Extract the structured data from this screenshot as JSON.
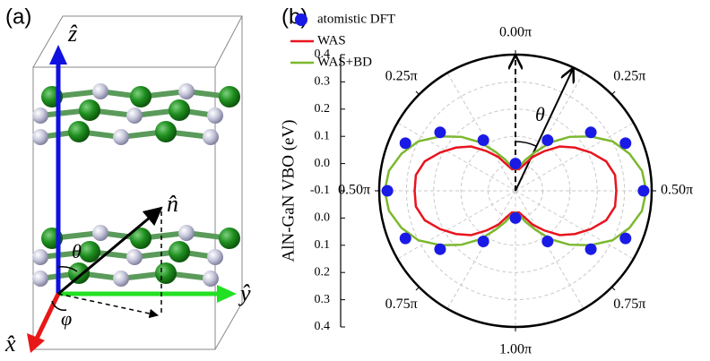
{
  "diagram": {
    "panel_label": "(a)",
    "axis_z": "ẑ",
    "axis_y": "ŷ",
    "axis_x": "x̂",
    "normal": "n̂",
    "theta": "θ",
    "phi": "φ"
  },
  "chart_data": {
    "type": "polar",
    "panel_label": "(b)",
    "radial_label": "AlN-GaN VBO (eV)",
    "annotation": "θ",
    "rlim": [
      -0.1,
      0.4
    ],
    "rticks": [
      -0.1,
      {
        "value": 0,
        "label": "0.0"
      },
      0.1,
      0.2,
      0.3,
      0.4
    ],
    "thetaticks": [
      {
        "value": 0,
        "label": "0.00π"
      },
      {
        "value": 0.25,
        "label": "0.25π"
      },
      {
        "value": 0.5,
        "label": "0.50π"
      },
      {
        "value": 0.75,
        "label": "0.75π"
      },
      {
        "value": 1,
        "label": "1.00π"
      },
      {
        "value": 1.25,
        "label": "0.75π"
      },
      {
        "value": 1.5,
        "label": "0.50π"
      },
      {
        "value": 1.75,
        "label": "0.25π"
      }
    ],
    "grid": true,
    "legend": "top-left",
    "series": [
      {
        "name": "atomistic DFT",
        "color": "#1a1ae6",
        "style": "markers",
        "theta": [
          0,
          0.18,
          0.29,
          0.37,
          0.5,
          0.63,
          0.71,
          0.82,
          1,
          1.18,
          1.29,
          1.37,
          1.5,
          1.63,
          1.71,
          1.82
        ],
        "values": [
          0.0,
          0.12,
          0.25,
          0.34,
          0.37,
          0.34,
          0.25,
          0.12,
          0.0,
          0.12,
          0.25,
          0.34,
          0.37,
          0.34,
          0.25,
          0.12
        ]
      },
      {
        "name": "WAS",
        "color": "#e8141e",
        "style": "line",
        "theta": [
          0,
          0.05,
          0.1,
          0.15,
          0.2,
          0.25,
          0.3,
          0.35,
          0.4,
          0.45,
          0.5,
          0.55,
          0.6,
          0.65,
          0.7,
          0.75,
          0.8,
          0.85,
          0.9,
          0.95,
          1,
          1.05,
          1.1,
          1.15,
          1.2,
          1.25,
          1.3,
          1.35,
          1.4,
          1.45,
          1.5,
          1.55,
          1.6,
          1.65,
          1.7,
          1.75,
          1.8,
          1.85,
          1.9,
          1.95,
          2
        ],
        "values": [
          -0.02,
          -0.02,
          0.0,
          0.04,
          0.08,
          0.13,
          0.17,
          0.21,
          0.25,
          0.27,
          0.27,
          0.27,
          0.25,
          0.21,
          0.17,
          0.13,
          0.08,
          0.04,
          0.0,
          -0.02,
          -0.02,
          -0.02,
          0.0,
          0.04,
          0.08,
          0.13,
          0.17,
          0.21,
          0.25,
          0.27,
          0.27,
          0.27,
          0.25,
          0.21,
          0.17,
          0.13,
          0.08,
          0.04,
          0.0,
          -0.02,
          -0.02
        ]
      },
      {
        "name": "WAS+BD",
        "color": "#7cb82e",
        "style": "line",
        "theta": [
          0,
          0.05,
          0.1,
          0.15,
          0.2,
          0.25,
          0.3,
          0.35,
          0.4,
          0.45,
          0.5,
          0.55,
          0.6,
          0.65,
          0.7,
          0.75,
          0.8,
          0.85,
          0.9,
          0.95,
          1,
          1.05,
          1.1,
          1.15,
          1.2,
          1.25,
          1.3,
          1.35,
          1.4,
          1.45,
          1.5,
          1.55,
          1.6,
          1.65,
          1.7,
          1.75,
          1.8,
          1.85,
          1.9,
          1.95,
          2
        ],
        "values": [
          -0.02,
          -0.01,
          0.02,
          0.06,
          0.12,
          0.18,
          0.24,
          0.3,
          0.34,
          0.37,
          0.38,
          0.37,
          0.34,
          0.3,
          0.24,
          0.18,
          0.12,
          0.06,
          0.02,
          -0.01,
          -0.02,
          -0.01,
          0.02,
          0.06,
          0.12,
          0.18,
          0.24,
          0.3,
          0.34,
          0.37,
          0.38,
          0.37,
          0.34,
          0.3,
          0.24,
          0.18,
          0.12,
          0.06,
          0.02,
          -0.01,
          -0.02
        ]
      }
    ]
  }
}
